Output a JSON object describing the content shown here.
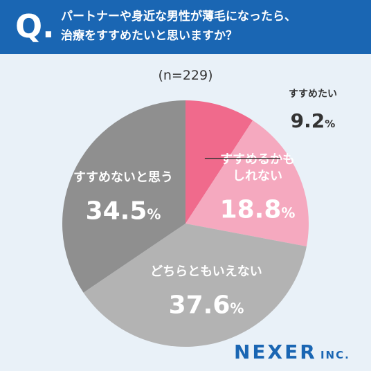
{
  "question": {
    "mark": "Q.",
    "line1": "パートナーや身近な男性が薄毛になったら、",
    "line2": "治療をすすめたいと思いますか？"
  },
  "sample_size": "(n=229)",
  "brand": {
    "name": "NEXER",
    "suffix": "INC."
  },
  "chart_data": {
    "type": "pie",
    "categories": [
      "すすめたい",
      "すすめるかもしれない",
      "どちらともいえない",
      "すすめないと思う"
    ],
    "values": [
      9.2,
      18.8,
      37.6,
      34.5
    ],
    "unit": "%",
    "colors": [
      "#f06a8c",
      "#f5a9bf",
      "#b3b3b3",
      "#8f8f8f"
    ],
    "label_lines": [
      [
        "すすめたい"
      ],
      [
        "すすめるかも",
        "しれない"
      ],
      [
        "どちらともいえない"
      ],
      [
        "すすめないと思う"
      ]
    ],
    "value_labels": [
      "9.2",
      "18.8",
      "37.6",
      "34.5"
    ]
  }
}
